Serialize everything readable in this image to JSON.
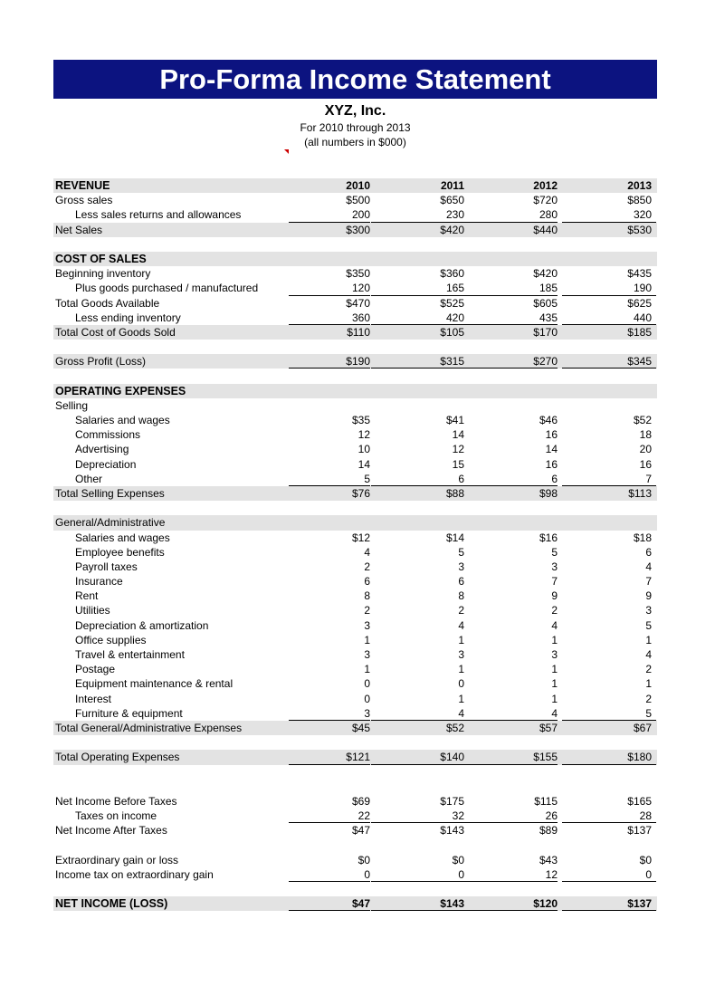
{
  "header": {
    "title": "Pro-Forma Income Statement",
    "company": "XYZ, Inc.",
    "period": "For 2010 through 2013",
    "units": "(all numbers in $000)"
  },
  "rows": [
    {
      "label": "REVENUE",
      "values": [
        "2010",
        "2011",
        "2012",
        "2013"
      ],
      "style": "head shaded bold"
    },
    {
      "label": "Gross sales",
      "values": [
        "$500",
        "$650",
        "$720",
        "$850"
      ],
      "style": ""
    },
    {
      "label": "Less sales returns and allowances",
      "values": [
        "200",
        "230",
        "280",
        "320"
      ],
      "style": "indent uline"
    },
    {
      "label": "Net Sales",
      "values": [
        "$300",
        "$420",
        "$440",
        "$530"
      ],
      "style": "shaded"
    },
    {
      "label": "",
      "values": [
        "",
        "",
        "",
        ""
      ],
      "style": ""
    },
    {
      "label": "COST OF SALES",
      "values": [
        "",
        "",
        "",
        ""
      ],
      "style": "head shaded bold"
    },
    {
      "label": "Beginning inventory",
      "values": [
        "$350",
        "$360",
        "$420",
        "$435"
      ],
      "style": ""
    },
    {
      "label": "Plus goods purchased / manufactured",
      "values": [
        "120",
        "165",
        "185",
        "190"
      ],
      "style": "indent uline"
    },
    {
      "label": "Total Goods Available",
      "values": [
        "$470",
        "$525",
        "$605",
        "$625"
      ],
      "style": ""
    },
    {
      "label": "Less ending inventory",
      "values": [
        "360",
        "420",
        "435",
        "440"
      ],
      "style": "indent uline"
    },
    {
      "label": "Total Cost of Goods Sold",
      "values": [
        "$110",
        "$105",
        "$170",
        "$185"
      ],
      "style": "shaded"
    },
    {
      "label": "",
      "values": [
        "",
        "",
        "",
        ""
      ],
      "style": ""
    },
    {
      "label": "Gross Profit (Loss)",
      "values": [
        "$190",
        "$315",
        "$270",
        "$345"
      ],
      "style": "shaded uline"
    },
    {
      "label": "",
      "values": [
        "",
        "",
        "",
        ""
      ],
      "style": ""
    },
    {
      "label": "OPERATING EXPENSES",
      "values": [
        "",
        "",
        "",
        ""
      ],
      "style": "head shaded bold"
    },
    {
      "label": "Selling",
      "values": [
        "",
        "",
        "",
        ""
      ],
      "style": ""
    },
    {
      "label": "Salaries and wages",
      "values": [
        "$35",
        "$41",
        "$46",
        "$52"
      ],
      "style": "indent"
    },
    {
      "label": "Commissions",
      "values": [
        "12",
        "14",
        "16",
        "18"
      ],
      "style": "indent"
    },
    {
      "label": "Advertising",
      "values": [
        "10",
        "12",
        "14",
        "20"
      ],
      "style": "indent"
    },
    {
      "label": "Depreciation",
      "values": [
        "14",
        "15",
        "16",
        "16"
      ],
      "style": "indent"
    },
    {
      "label": "Other",
      "values": [
        "5",
        "6",
        "6",
        "7"
      ],
      "style": "indent uline"
    },
    {
      "label": "Total Selling Expenses",
      "values": [
        "$76",
        "$88",
        "$98",
        "$113"
      ],
      "style": "shaded"
    },
    {
      "label": "",
      "values": [
        "",
        "",
        "",
        ""
      ],
      "style": ""
    },
    {
      "label": "General/Administrative",
      "values": [
        "",
        "",
        "",
        ""
      ],
      "style": "shaded"
    },
    {
      "label": "Salaries and wages",
      "values": [
        "$12",
        "$14",
        "$16",
        "$18"
      ],
      "style": "indent"
    },
    {
      "label": "Employee benefits",
      "values": [
        "4",
        "5",
        "5",
        "6"
      ],
      "style": "indent"
    },
    {
      "label": "Payroll taxes",
      "values": [
        "2",
        "3",
        "3",
        "4"
      ],
      "style": "indent"
    },
    {
      "label": "Insurance",
      "values": [
        "6",
        "6",
        "7",
        "7"
      ],
      "style": "indent"
    },
    {
      "label": "Rent",
      "values": [
        "8",
        "8",
        "9",
        "9"
      ],
      "style": "indent"
    },
    {
      "label": "Utilities",
      "values": [
        "2",
        "2",
        "2",
        "3"
      ],
      "style": "indent"
    },
    {
      "label": "Depreciation & amortization",
      "values": [
        "3",
        "4",
        "4",
        "5"
      ],
      "style": "indent"
    },
    {
      "label": "Office supplies",
      "values": [
        "1",
        "1",
        "1",
        "1"
      ],
      "style": "indent"
    },
    {
      "label": "Travel & entertainment",
      "values": [
        "3",
        "3",
        "3",
        "4"
      ],
      "style": "indent"
    },
    {
      "label": "Postage",
      "values": [
        "1",
        "1",
        "1",
        "2"
      ],
      "style": "indent"
    },
    {
      "label": "Equipment maintenance & rental",
      "values": [
        "0",
        "0",
        "1",
        "1"
      ],
      "style": "indent"
    },
    {
      "label": "Interest",
      "values": [
        "0",
        "1",
        "1",
        "2"
      ],
      "style": "indent"
    },
    {
      "label": "Furniture & equipment",
      "values": [
        "3",
        "4",
        "4",
        "5"
      ],
      "style": "indent uline"
    },
    {
      "label": "Total General/Administrative Expenses",
      "values": [
        "$45",
        "$52",
        "$57",
        "$67"
      ],
      "style": "shaded"
    },
    {
      "label": "",
      "values": [
        "",
        "",
        "",
        ""
      ],
      "style": ""
    },
    {
      "label": "Total Operating Expenses",
      "values": [
        "$121",
        "$140",
        "$155",
        "$180"
      ],
      "style": "shaded uline"
    },
    {
      "label": "",
      "values": [
        "",
        "",
        "",
        ""
      ],
      "style": ""
    },
    {
      "label": "",
      "values": [
        "",
        "",
        "",
        ""
      ],
      "style": ""
    },
    {
      "label": "Net Income Before Taxes",
      "values": [
        "$69",
        "$175",
        "$115",
        "$165"
      ],
      "style": ""
    },
    {
      "label": "Taxes on income",
      "values": [
        "22",
        "32",
        "26",
        "28"
      ],
      "style": "indent uline"
    },
    {
      "label": "Net Income After Taxes",
      "values": [
        "$47",
        "$143",
        "$89",
        "$137"
      ],
      "style": ""
    },
    {
      "label": "",
      "values": [
        "",
        "",
        "",
        ""
      ],
      "style": ""
    },
    {
      "label": "Extraordinary gain or loss",
      "values": [
        "$0",
        "$0",
        "$43",
        "$0"
      ],
      "style": ""
    },
    {
      "label": "Income tax on extraordinary gain",
      "values": [
        "0",
        "0",
        "12",
        "0"
      ],
      "style": "uline"
    },
    {
      "label": "",
      "values": [
        "",
        "",
        "",
        ""
      ],
      "style": ""
    },
    {
      "label": "NET INCOME (LOSS)",
      "values": [
        "$47",
        "$143",
        "$120",
        "$137"
      ],
      "style": "head shaded bold uline"
    }
  ]
}
